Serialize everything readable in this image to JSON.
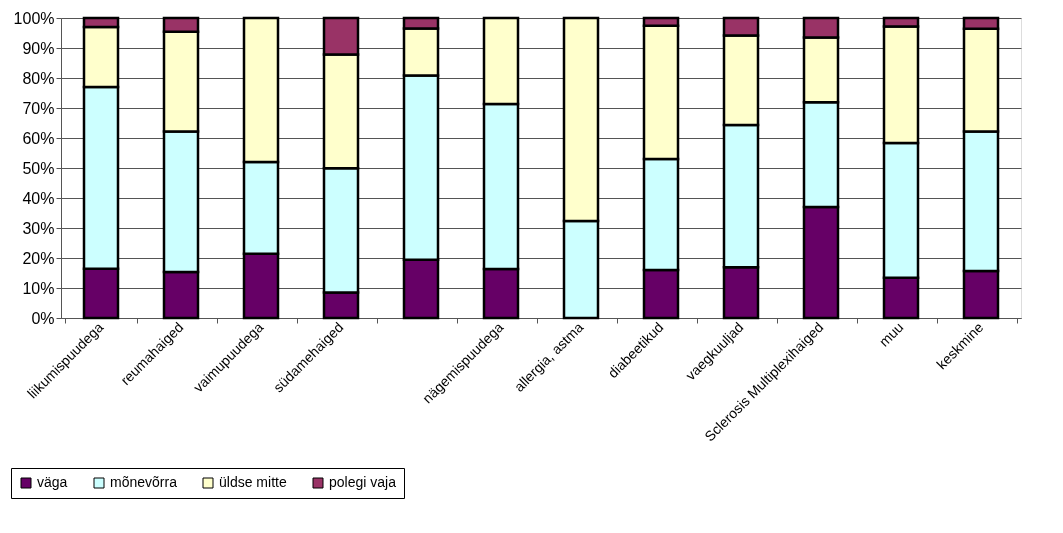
{
  "chart_data": {
    "type": "bar",
    "stacked": true,
    "categories": [
      "liikumispuudega",
      "reumahaiged",
      "vaimupuudega",
      "südamehaiged",
      null,
      "nägemispuudega",
      "allergia, astma",
      "diabeetikud",
      "vaegkuuljad",
      "Sclerosis Multiplexihaiged",
      "muu",
      "keskmine"
    ],
    "series": [
      {
        "name": "väga",
        "color": "#660066",
        "values": [
          16.4,
          15.3,
          21.4,
          8.5,
          19.4,
          16.3,
          0,
          16.0,
          16.9,
          37.0,
          13.4,
          15.7
        ]
      },
      {
        "name": "mõnevõrra",
        "color": "#ccffff",
        "values": [
          60.6,
          46.9,
          30.6,
          41.4,
          61.4,
          55.0,
          32.3,
          37.0,
          47.4,
          34.9,
          44.9,
          46.5
        ]
      },
      {
        "name": "üldse mitte",
        "color": "#ffffcc",
        "values": [
          20.0,
          33.2,
          48.0,
          37.9,
          15.7,
          28.7,
          67.7,
          44.4,
          29.9,
          21.6,
          38.9,
          34.2
        ]
      },
      {
        "name": "polegi vaja",
        "color": "#993366",
        "values": [
          3.0,
          4.6,
          0,
          12.2,
          3.5,
          0,
          0,
          2.6,
          5.8,
          6.5,
          2.8,
          3.6
        ]
      }
    ],
    "ylim": [
      0,
      100
    ],
    "yticks": [
      {
        "value": 0,
        "label": "0%"
      },
      {
        "value": 10,
        "label": "10%"
      },
      {
        "value": 20,
        "label": "20%"
      },
      {
        "value": 30,
        "label": "30%"
      },
      {
        "value": 40,
        "label": "40%"
      },
      {
        "value": 50,
        "label": "50%"
      },
      {
        "value": 60,
        "label": "60%"
      },
      {
        "value": 70,
        "label": "70%"
      },
      {
        "value": 80,
        "label": "80%"
      },
      {
        "value": 90,
        "label": "90%"
      },
      {
        "value": 100,
        "label": "100%"
      }
    ],
    "grid": "y",
    "legend": "bottom left"
  }
}
